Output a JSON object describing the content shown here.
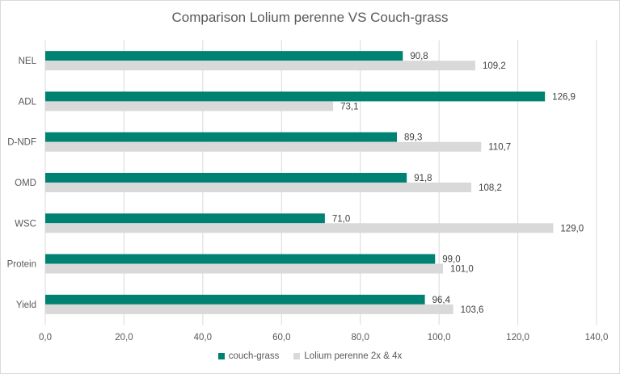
{
  "chart_data": {
    "type": "bar",
    "orientation": "horizontal",
    "title": "Comparison Lolium perenne VS Couch-grass",
    "xlabel": "",
    "ylabel": "",
    "xlim": [
      0,
      140
    ],
    "x_ticks": [
      "0,0",
      "20,0",
      "40,0",
      "60,0",
      "80,0",
      "100,0",
      "120,0",
      "140,0"
    ],
    "x_tick_values": [
      0,
      20,
      40,
      60,
      80,
      100,
      120,
      140
    ],
    "grid": true,
    "legend_position": "bottom",
    "categories": [
      "NEL",
      "ADL",
      "D-NDF",
      "OMD",
      "WSC",
      "Protein",
      "Yield"
    ],
    "series": [
      {
        "name": "couch-grass",
        "color": "#008272",
        "values": [
          90.8,
          126.9,
          89.3,
          91.8,
          71.0,
          99.0,
          96.4
        ],
        "labels": [
          "90,8",
          "126,9",
          "89,3",
          "91,8",
          "71,0",
          "99,0",
          "96,4"
        ]
      },
      {
        "name": "Lolium perenne 2x & 4x",
        "color": "#d9d9d9",
        "values": [
          109.2,
          73.1,
          110.7,
          108.2,
          129.0,
          101.0,
          103.6
        ],
        "labels": [
          "109,2",
          "73,1",
          "110,7",
          "108,2",
          "129,0",
          "101,0",
          "103,6"
        ]
      }
    ]
  }
}
